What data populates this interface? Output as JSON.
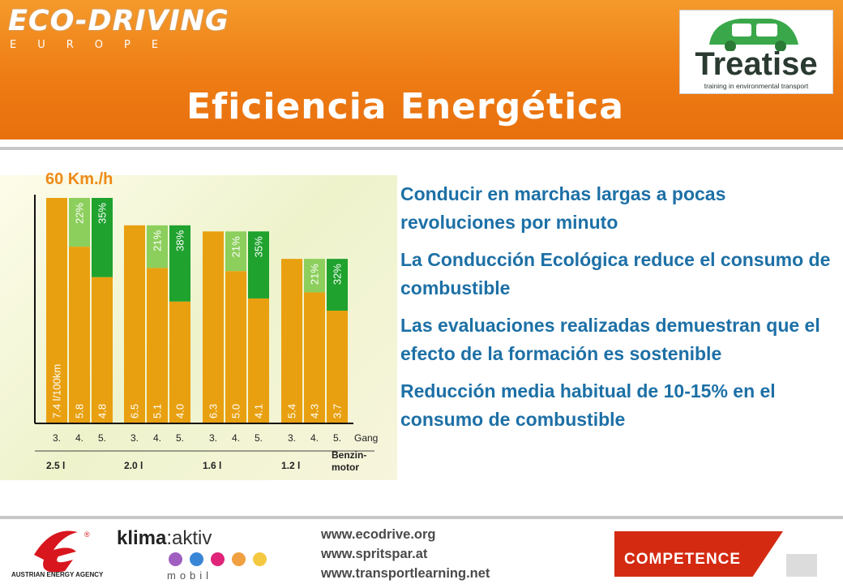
{
  "header": {
    "brand": "ECO-DRIVING",
    "brand_sub": "EUROPE",
    "title": "Eficiencia Energética",
    "logo_word": "Treatise",
    "logo_tagline": "training in environmental transport"
  },
  "chart_data": {
    "type": "bar",
    "title": "60 Km./h",
    "unit_label": "l/100km",
    "groups": [
      {
        "engine": "2.5 l",
        "bars": [
          {
            "gear": "3.",
            "value": 7.4,
            "saving": ""
          },
          {
            "gear": "4.",
            "value": 5.8,
            "saving": "22%"
          },
          {
            "gear": "5.",
            "value": 4.8,
            "saving": "35%"
          }
        ]
      },
      {
        "engine": "2.0 l",
        "bars": [
          {
            "gear": "3.",
            "value": 6.5,
            "saving": ""
          },
          {
            "gear": "4.",
            "value": 5.1,
            "saving": "21%"
          },
          {
            "gear": "5.",
            "value": 4.0,
            "saving": "38%"
          }
        ]
      },
      {
        "engine": "1.6 l",
        "bars": [
          {
            "gear": "3.",
            "value": 6.3,
            "saving": ""
          },
          {
            "gear": "4.",
            "value": 5.0,
            "saving": "21%"
          },
          {
            "gear": "5.",
            "value": 4.1,
            "saving": "35%"
          }
        ]
      },
      {
        "engine": "1.2 l",
        "bars": [
          {
            "gear": "3.",
            "value": 5.4,
            "saving": ""
          },
          {
            "gear": "4.",
            "value": 4.3,
            "saving": "21%"
          },
          {
            "gear": "5.",
            "value": 3.7,
            "saving": "32%"
          }
        ]
      }
    ],
    "gear_suffix": "Gang",
    "engine_note": "Benzin-motor",
    "colors": {
      "consumption": "#e8a010",
      "saving_light": "#8ccf5c",
      "saving_dark": "#1fa22e"
    }
  },
  "bullets": [
    "Conducir en marchas largas a pocas revoluciones por minuto",
    "La Conducción Ecológica reduce el consumo de combustible",
    "Las evaluaciones realizadas demuestran que el efecto de la formación es sostenible",
    "Reducción media habitual de 10-15% en el consumo de combustible"
  ],
  "footer": {
    "urls": [
      "www.ecodrive.org",
      "www.spritspar.at",
      "www.transportlearning.net"
    ],
    "agency": "AUSTRIAN ENERGY AGENCY",
    "klima_a": "klima",
    "klima_b": ":aktiv",
    "mobil": "mobil",
    "competence": "COMPETENCE"
  }
}
